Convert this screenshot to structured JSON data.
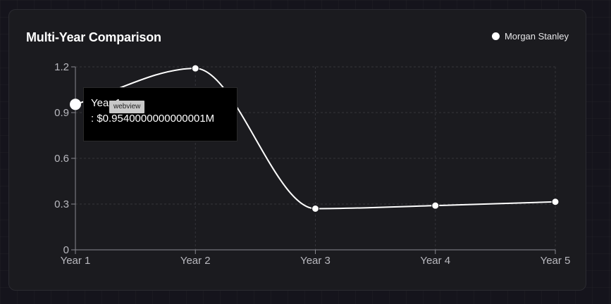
{
  "card": {
    "title": "Multi-Year Comparison",
    "legend_label": "Morgan Stanley"
  },
  "tooltip": {
    "label": "Year 1",
    "value": ": $0.9540000000000001M",
    "badge": "webview"
  },
  "chart_data": {
    "type": "line",
    "title": "Multi-Year Comparison",
    "xlabel": "",
    "ylabel": "",
    "categories": [
      "Year 1",
      "Year 2",
      "Year 3",
      "Year 4",
      "Year 5"
    ],
    "series": [
      {
        "name": "Morgan Stanley",
        "values": [
          0.954,
          1.19,
          0.27,
          0.29,
          0.315
        ],
        "color": "#ffffff"
      }
    ],
    "ylim": [
      0,
      1.2
    ],
    "yticks": [
      "0",
      "0.3",
      "0.6",
      "0.9",
      "1.2"
    ],
    "grid": true,
    "legend": "top-right",
    "active_point": 0
  }
}
